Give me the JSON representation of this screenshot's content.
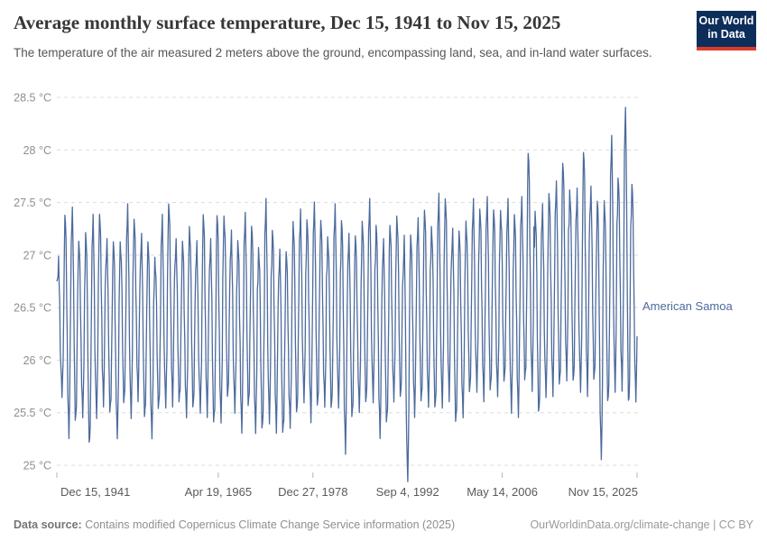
{
  "header": {
    "title": "Average monthly surface temperature, Dec 15, 1941 to Nov 15, 2025",
    "subtitle": "The temperature of the air measured 2 meters above the ground, encompassing land, sea, and in-land water surfaces.",
    "logo": {
      "line1": "Our World",
      "line2": "in Data",
      "bg_color": "#0d2e5b",
      "bar_color": "#dc3a2c"
    }
  },
  "footer": {
    "source_label": "Data source:",
    "source_text": " Contains modified Copernicus Climate Change Service information (2025)",
    "link_text": "OurWorldinData.org/climate-change | CC BY"
  },
  "chart_data": {
    "type": "line",
    "title": "Average monthly surface temperature, Dec 15, 1941 to Nov 15, 2025",
    "entity_label": "American Samoa",
    "unit": "°C",
    "grid": true,
    "legend_position": "right-of-line-end",
    "colors": {
      "line": "#4C6A9C",
      "grid": "#dcdcdc",
      "y_tick_label": "#8f8f8f",
      "x_tick_label": "#5a5a5a",
      "tick_mark": "#b5b5b5"
    },
    "y_axis": {
      "min": 25,
      "max": 28.5,
      "tick_values": [
        25,
        25.5,
        26,
        26.5,
        27,
        27.5,
        28,
        28.5
      ],
      "tick_labels": [
        "25 °C",
        "25.5 °C",
        "26 °C",
        "26.5 °C",
        "27 °C",
        "27.5 °C",
        "28 °C",
        "28.5 °C"
      ]
    },
    "x_axis": {
      "min_time": 1941.958,
      "max_time": 2025.874,
      "ticks": [
        {
          "label": "Dec 15, 1941",
          "t": 1941.958,
          "align": "start"
        },
        {
          "label": "Apr 19, 1965",
          "t": 1965.3,
          "align": "middle"
        },
        {
          "label": "Dec 27, 1978",
          "t": 1978.99,
          "align": "middle"
        },
        {
          "label": "Sep 4, 1992",
          "t": 1992.68,
          "align": "middle"
        },
        {
          "label": "May 14, 2006",
          "t": 2006.37,
          "align": "middle"
        },
        {
          "label": "Nov 15, 2025",
          "t": 2025.874,
          "align": "end"
        }
      ]
    },
    "series": {
      "name": "American Samoa",
      "start_point": {
        "year": 1941,
        "month": 12,
        "value": 26.75
      },
      "first_full_year": 1942,
      "last_year": 2025,
      "last_month": 11,
      "seasonal_shape": [
        0.7,
        0.95,
        1.0,
        0.75,
        0.3,
        -0.2,
        -0.65,
        -0.9,
        -1.0,
        -0.8,
        -0.35,
        0.3
      ],
      "annual_means": [
        26.3,
        26.35,
        26.4,
        26.3,
        26.2,
        26.4,
        26.5,
        26.3,
        26.2,
        26.35,
        26.45,
        26.5,
        26.3,
        26.2,
        26.25,
        26.45,
        26.55,
        26.35,
        26.3,
        26.4,
        26.3,
        26.45,
        26.25,
        26.4,
        26.5,
        26.35,
        26.25,
        26.45,
        26.3,
        26.2,
        26.45,
        26.3,
        26.15,
        26.2,
        26.4,
        26.5,
        26.4,
        26.5,
        26.45,
        26.35,
        26.5,
        26.25,
        26.3,
        26.35,
        26.45,
        26.55,
        26.3,
        26.25,
        26.45,
        26.5,
        26.0,
        26.35,
        26.45,
        26.5,
        26.4,
        26.55,
        26.6,
        26.3,
        26.35,
        26.5,
        26.6,
        26.55,
        26.6,
        26.55,
        26.6,
        26.5,
        26.45,
        26.65,
        26.85,
        26.45,
        26.55,
        26.65,
        26.7,
        26.85,
        26.7,
        26.65,
        26.85,
        26.7,
        26.3,
        26.55,
        26.9,
        26.75,
        26.95,
        26.65
      ],
      "annual_amplitudes": [
        0.6,
        1.0,
        1.0,
        0.8,
        1.0,
        0.9,
        0.85,
        0.8,
        0.9,
        0.75,
        0.95,
        0.8,
        0.85,
        0.9,
        0.7,
        0.85,
        0.9,
        0.75,
        0.8,
        0.85,
        0.75,
        0.9,
        0.85,
        0.95,
        0.85,
        0.8,
        0.85,
        0.9,
        0.95,
        0.85,
        1.0,
        0.9,
        0.85,
        0.8,
        0.9,
        0.85,
        0.9,
        0.95,
        0.85,
        0.8,
        0.9,
        1.05,
        0.85,
        0.8,
        0.85,
        0.9,
        0.95,
        0.85,
        0.8,
        0.85,
        1.1,
        0.8,
        0.85,
        0.9,
        0.85,
        0.95,
        0.9,
        0.9,
        0.85,
        0.8,
        0.85,
        0.85,
        0.9,
        0.85,
        0.8,
        0.95,
        0.9,
        0.85,
        1.1,
        0.95,
        0.85,
        0.9,
        0.95,
        1.0,
        0.9,
        0.9,
        1.1,
        0.9,
        1.2,
        0.95,
        1.15,
        0.95,
        1.4,
        1.0
      ],
      "noise_pattern": [
        0.06,
        -0.09,
        0.11,
        -0.05,
        0.08,
        -0.12,
        0.03,
        0.09,
        -0.07,
        0.04,
        -0.1,
        0.07,
        -0.03,
        0.1,
        -0.06
      ],
      "extremes": {
        "max_value": 28.35,
        "max_when": "2024",
        "min_value": 24.85,
        "min_when": "Sep 1992"
      }
    }
  }
}
